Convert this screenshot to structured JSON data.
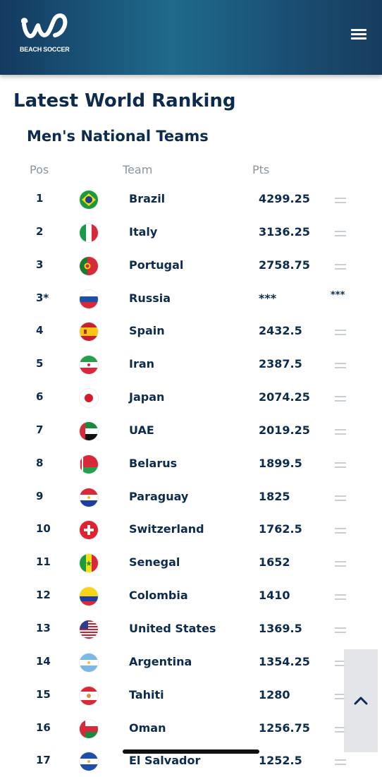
{
  "header": {
    "logo_text": "BEACH SOCCER",
    "menu_icon": "hamburger-icon"
  },
  "page": {
    "title": "Latest World Ranking",
    "section": "Men's National Teams"
  },
  "columns": {
    "pos": "Pos",
    "team": "Team",
    "pts": "Pts"
  },
  "rankings": [
    {
      "pos": "1",
      "team": "Brazil",
      "pts": "4299.25",
      "trend": "same"
    },
    {
      "pos": "2",
      "team": "Italy",
      "pts": "3136.25",
      "trend": "same"
    },
    {
      "pos": "3",
      "team": "Portugal",
      "pts": "2758.75",
      "trend": "same"
    },
    {
      "pos": "3*",
      "team": "Russia",
      "pts": "***",
      "trend": "***"
    },
    {
      "pos": "4",
      "team": "Spain",
      "pts": "2432.5",
      "trend": "same"
    },
    {
      "pos": "5",
      "team": "Iran",
      "pts": "2387.5",
      "trend": "same"
    },
    {
      "pos": "6",
      "team": "Japan",
      "pts": "2074.25",
      "trend": "same"
    },
    {
      "pos": "7",
      "team": "UAE",
      "pts": "2019.25",
      "trend": "same"
    },
    {
      "pos": "8",
      "team": "Belarus",
      "pts": "1899.5",
      "trend": "same"
    },
    {
      "pos": "9",
      "team": "Paraguay",
      "pts": "1825",
      "trend": "same"
    },
    {
      "pos": "10",
      "team": "Switzerland",
      "pts": "1762.5",
      "trend": "same"
    },
    {
      "pos": "11",
      "team": "Senegal",
      "pts": "1652",
      "trend": "same"
    },
    {
      "pos": "12",
      "team": "Colombia",
      "pts": "1410",
      "trend": "same"
    },
    {
      "pos": "13",
      "team": "United States",
      "pts": "1369.5",
      "trend": "same"
    },
    {
      "pos": "14",
      "team": "Argentina",
      "pts": "1354.25",
      "trend": "same"
    },
    {
      "pos": "15",
      "team": "Tahiti",
      "pts": "1280",
      "trend": "same"
    },
    {
      "pos": "16",
      "team": "Oman",
      "pts": "1256.75",
      "trend": "same"
    },
    {
      "pos": "17",
      "team": "El Salvador",
      "pts": "1252.5",
      "trend": "same"
    }
  ],
  "scroll_top_icon": "chevron-up-icon",
  "colors": {
    "header_dark": "#143a60",
    "header_light": "#1f6a8c",
    "text_primary": "#0d2b4e",
    "text_muted": "#8a93a0"
  }
}
